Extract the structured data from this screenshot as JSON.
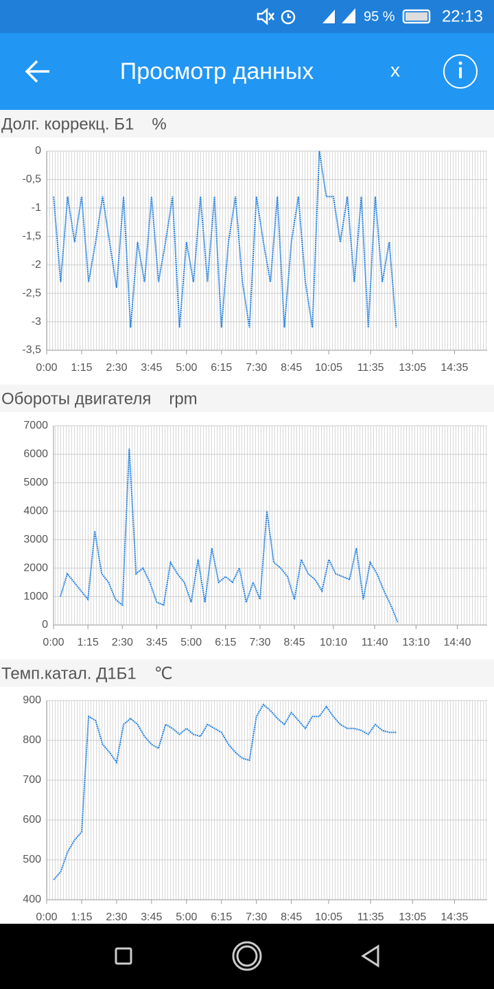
{
  "status_bar": {
    "battery": "95 %",
    "time": "22:13"
  },
  "app_bar": {
    "title": "Просмотр данных",
    "close": "x"
  },
  "chart_data": [
    {
      "type": "line",
      "title": "Долг. коррекц. Б1",
      "unit": "%",
      "xlim": [
        0,
        945
      ],
      "ylim": [
        -3.5,
        0
      ],
      "xticks": [
        {
          "value": 0,
          "label": "0:00"
        },
        {
          "value": 75,
          "label": "1:15"
        },
        {
          "value": 150,
          "label": "2:30"
        },
        {
          "value": 225,
          "label": "3:45"
        },
        {
          "value": 300,
          "label": "5:00"
        },
        {
          "value": 375,
          "label": "6:15"
        },
        {
          "value": 450,
          "label": "7:30"
        },
        {
          "value": 525,
          "label": "8:45"
        },
        {
          "value": 605,
          "label": "10:05"
        },
        {
          "value": 695,
          "label": "11:35"
        },
        {
          "value": 785,
          "label": "13:05"
        },
        {
          "value": 875,
          "label": "14:35"
        }
      ],
      "yticks": [
        0,
        {
          "value": -0.5,
          "label": "-0,5"
        },
        -1,
        {
          "value": -1.5,
          "label": "-1,5"
        },
        -2,
        {
          "value": -2.5,
          "label": "-2,5"
        },
        -3,
        {
          "value": -3.5,
          "label": "-3,5"
        }
      ],
      "grid": true,
      "series": [
        {
          "color": "#1e7fe0",
          "x": [
            15,
            30,
            45,
            60,
            75,
            90,
            105,
            120,
            135,
            150,
            165,
            180,
            195,
            210,
            225,
            240,
            255,
            270,
            285,
            300,
            315,
            330,
            345,
            360,
            375,
            390,
            405,
            420,
            435,
            450,
            465,
            480,
            495,
            510,
            525,
            540,
            555,
            570,
            585,
            600,
            615,
            630,
            645,
            660,
            675,
            690,
            705,
            720,
            735,
            750
          ],
          "values": [
            -0.8,
            -2.3,
            -0.8,
            -1.6,
            -0.8,
            -2.3,
            -1.6,
            -0.8,
            -1.6,
            -2.4,
            -0.8,
            -3.1,
            -1.6,
            -2.3,
            -0.8,
            -2.3,
            -1.6,
            -0.8,
            -3.1,
            -1.6,
            -2.3,
            -0.8,
            -2.3,
            -0.8,
            -3.1,
            -1.6,
            -0.8,
            -2.3,
            -3.1,
            -0.8,
            -1.6,
            -2.3,
            -0.8,
            -3.1,
            -1.6,
            -0.8,
            -2.3,
            -3.1,
            0,
            -0.8,
            -0.8,
            -1.6,
            -0.8,
            -2.3,
            -0.8,
            -3.1,
            -0.8,
            -2.3,
            -1.6,
            -3.1
          ]
        }
      ]
    },
    {
      "type": "line",
      "title": "Обороты двигателя",
      "unit": "rpm",
      "xlim": [
        0,
        945
      ],
      "ylim": [
        0,
        7000
      ],
      "xticks": [
        {
          "value": 0,
          "label": "0:00"
        },
        {
          "value": 75,
          "label": "1:15"
        },
        {
          "value": 150,
          "label": "2:30"
        },
        {
          "value": 225,
          "label": "3:45"
        },
        {
          "value": 300,
          "label": "5:00"
        },
        {
          "value": 375,
          "label": "6:15"
        },
        {
          "value": 450,
          "label": "7:30"
        },
        {
          "value": 525,
          "label": "8:45"
        },
        {
          "value": 610,
          "label": "10:10"
        },
        {
          "value": 700,
          "label": "11:40"
        },
        {
          "value": 790,
          "label": "13:10"
        },
        {
          "value": 880,
          "label": "14:40"
        }
      ],
      "yticks": [
        0,
        1000,
        2000,
        3000,
        4000,
        5000,
        6000,
        7000
      ],
      "grid": true,
      "series": [
        {
          "color": "#1e7fe0",
          "x": [
            15,
            30,
            45,
            60,
            75,
            90,
            105,
            120,
            135,
            150,
            165,
            180,
            195,
            210,
            225,
            240,
            255,
            270,
            285,
            300,
            315,
            330,
            345,
            360,
            375,
            390,
            405,
            420,
            435,
            450,
            465,
            480,
            495,
            510,
            525,
            540,
            555,
            570,
            585,
            600,
            615,
            630,
            645,
            660,
            675,
            690,
            705,
            720,
            735,
            750
          ],
          "values": [
            1000,
            1800,
            1500,
            1200,
            900,
            3300,
            1800,
            1500,
            900,
            700,
            6200,
            1800,
            2000,
            1500,
            800,
            700,
            2200,
            1800,
            1500,
            800,
            2300,
            800,
            2700,
            1500,
            1700,
            1500,
            2000,
            800,
            1500,
            900,
            4000,
            2200,
            2000,
            1700,
            900,
            2300,
            1800,
            1600,
            1200,
            2300,
            1800,
            1700,
            1600,
            2700,
            900,
            2200,
            1800,
            1200,
            700,
            100
          ]
        }
      ]
    },
    {
      "type": "line",
      "title": "Темп.катал. Д1Б1",
      "unit": "℃",
      "xlim": [
        0,
        945
      ],
      "ylim": [
        400,
        900
      ],
      "xticks": [
        {
          "value": 0,
          "label": "0:00"
        },
        {
          "value": 75,
          "label": "1:15"
        },
        {
          "value": 150,
          "label": "2:30"
        },
        {
          "value": 225,
          "label": "3:45"
        },
        {
          "value": 300,
          "label": "5:00"
        },
        {
          "value": 375,
          "label": "6:15"
        },
        {
          "value": 450,
          "label": "7:30"
        },
        {
          "value": 525,
          "label": "8:45"
        },
        {
          "value": 605,
          "label": "10:05"
        },
        {
          "value": 695,
          "label": "11:35"
        },
        {
          "value": 785,
          "label": "13:05"
        },
        {
          "value": 875,
          "label": "14:35"
        }
      ],
      "yticks": [
        400,
        500,
        600,
        700,
        800,
        900
      ],
      "grid": true,
      "series": [
        {
          "color": "#1e7fe0",
          "x": [
            15,
            30,
            45,
            60,
            75,
            90,
            105,
            120,
            135,
            150,
            165,
            180,
            195,
            210,
            225,
            240,
            255,
            270,
            285,
            300,
            315,
            330,
            345,
            360,
            375,
            390,
            405,
            420,
            435,
            450,
            465,
            480,
            495,
            510,
            525,
            540,
            555,
            570,
            585,
            600,
            615,
            630,
            645,
            660,
            675,
            690,
            705,
            720,
            735,
            750
          ],
          "values": [
            450,
            470,
            520,
            550,
            570,
            860,
            850,
            790,
            770,
            745,
            840,
            855,
            840,
            810,
            790,
            780,
            840,
            830,
            815,
            830,
            815,
            810,
            840,
            830,
            820,
            790,
            770,
            755,
            750,
            860,
            890,
            875,
            855,
            840,
            870,
            850,
            830,
            860,
            860,
            885,
            860,
            840,
            830,
            830,
            825,
            815,
            840,
            825,
            820,
            820
          ]
        }
      ]
    }
  ]
}
